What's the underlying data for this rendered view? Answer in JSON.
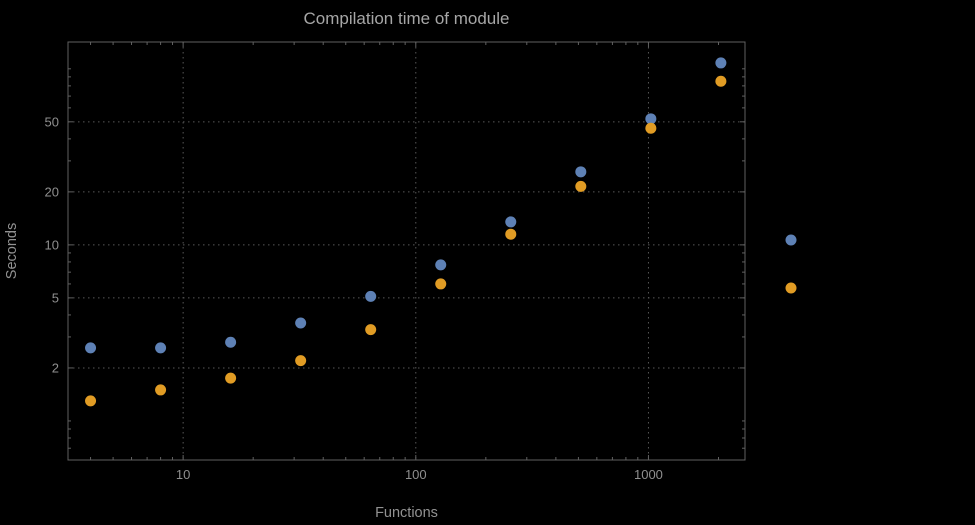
{
  "chart_data": {
    "type": "scatter",
    "title": "Compilation time of module",
    "xlabel": "Functions",
    "ylabel": "Seconds",
    "x_scale": "log",
    "y_scale": "log",
    "xlim": [
      3.2,
      2600
    ],
    "ylim": [
      0.6,
      142
    ],
    "x_ticks": [
      10,
      100,
      1000
    ],
    "x_tick_labels": [
      "10",
      "100",
      "1000"
    ],
    "y_ticks": [
      2,
      5,
      10,
      20,
      50
    ],
    "y_tick_labels": [
      "2",
      "5",
      "10",
      "20",
      "50"
    ],
    "grid": "dotted-major-both-axes",
    "legend_position": "right-outside-center",
    "x": [
      4,
      8,
      16,
      32,
      64,
      128,
      256,
      512,
      1024,
      2048
    ],
    "series": [
      {
        "name": "series-1-blue",
        "color": "#5E81B5",
        "values": [
          2.6,
          2.6,
          2.8,
          3.6,
          5.1,
          7.7,
          13.5,
          26,
          52,
          108
        ]
      },
      {
        "name": "series-2-orange",
        "color": "#E19C24",
        "values": [
          1.3,
          1.5,
          1.75,
          2.2,
          3.3,
          6.0,
          11.5,
          21.5,
          46,
          85
        ]
      }
    ],
    "colors": {
      "background": "#000000",
      "frame": "#616161",
      "grid": "#585858",
      "tick_label": "#8f8f8f",
      "axis_label": "#929292",
      "title": "#a6a6a6"
    },
    "marker": {
      "shape": "circle",
      "radius_px": 5.5
    }
  }
}
